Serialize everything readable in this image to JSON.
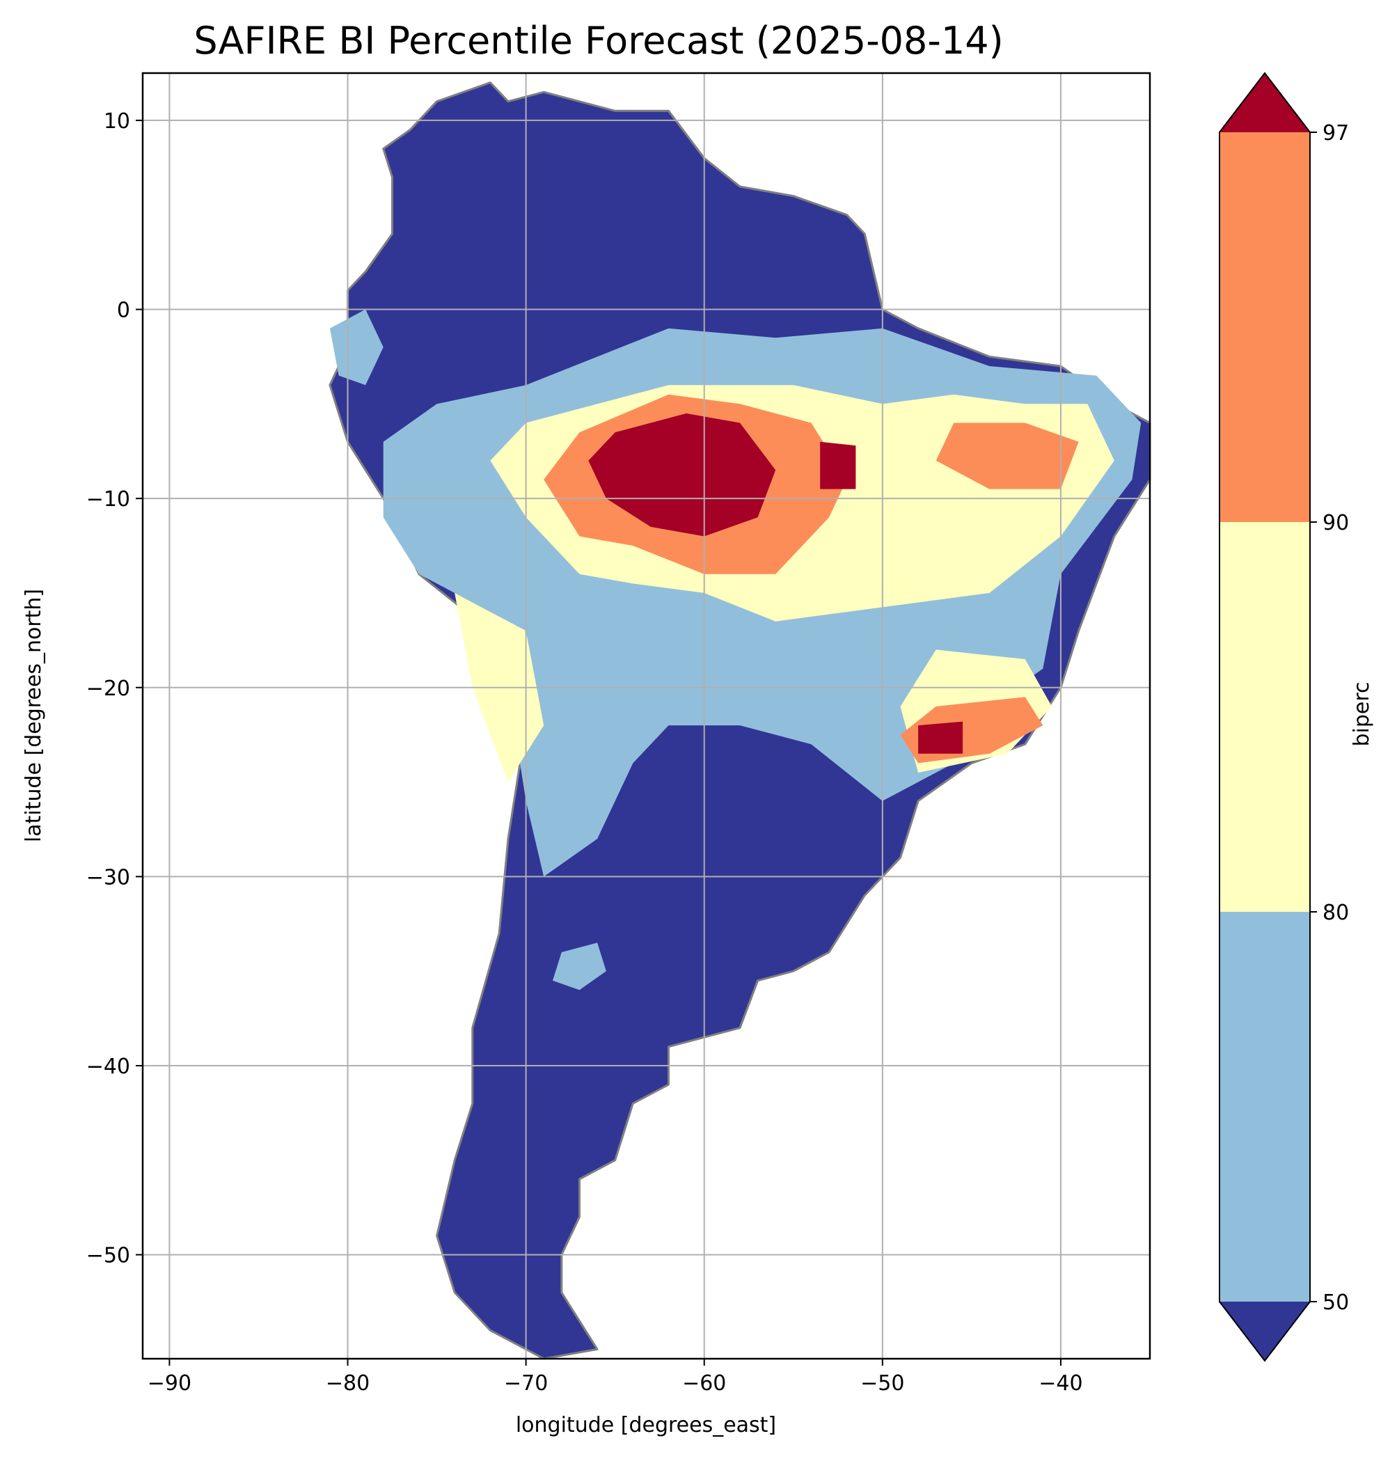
{
  "chart_data": {
    "type": "heatmap",
    "title": "SAFIRE BI Percentile Forecast (2025-08-14)",
    "xlabel": "longitude [degrees_east]",
    "ylabel": "latitude [degrees_north]",
    "xlim": [
      -91.5,
      -35
    ],
    "ylim": [
      -55.5,
      12.5
    ],
    "xticks": [
      {
        "value": -90,
        "label": "−90"
      },
      {
        "value": -80,
        "label": "−80"
      },
      {
        "value": -70,
        "label": "−70"
      },
      {
        "value": -60,
        "label": "−60"
      },
      {
        "value": -50,
        "label": "−50"
      },
      {
        "value": -40,
        "label": "−40"
      }
    ],
    "yticks": [
      {
        "value": 10,
        "label": "10"
      },
      {
        "value": 0,
        "label": "0"
      },
      {
        "value": -10,
        "label": "−10"
      },
      {
        "value": -20,
        "label": "−20"
      },
      {
        "value": -30,
        "label": "−30"
      },
      {
        "value": -40,
        "label": "−40"
      },
      {
        "value": -50,
        "label": "−50"
      }
    ],
    "grid": true,
    "colorbar": {
      "label": "biperc",
      "extend": "both",
      "ticks": [
        {
          "value": 50,
          "label": "50"
        },
        {
          "value": 80,
          "label": "80"
        },
        {
          "value": 90,
          "label": "90"
        },
        {
          "value": 97,
          "label": "97"
        }
      ],
      "bins": [
        {
          "range": [
            null,
            50
          ],
          "color": "#313695"
        },
        {
          "range": [
            50,
            80
          ],
          "color": "#91bfdb"
        },
        {
          "range": [
            80,
            90
          ],
          "color": "#ffffbf"
        },
        {
          "range": [
            90,
            97
          ],
          "color": "#fc8d59"
        },
        {
          "range": [
            97,
            null
          ],
          "color": "#a50026"
        }
      ]
    },
    "land_outline": [
      [
        -78,
        8.5
      ],
      [
        -76.5,
        9.5
      ],
      [
        -75,
        11
      ],
      [
        -72,
        12
      ],
      [
        -71,
        11
      ],
      [
        -69,
        11.5
      ],
      [
        -65,
        10.5
      ],
      [
        -62,
        10.5
      ],
      [
        -60,
        8
      ],
      [
        -58,
        6.5
      ],
      [
        -55,
        6
      ],
      [
        -52,
        5
      ],
      [
        -51,
        4
      ],
      [
        -50,
        0
      ],
      [
        -48,
        -1
      ],
      [
        -44,
        -2.5
      ],
      [
        -40,
        -3
      ],
      [
        -37,
        -5
      ],
      [
        -35,
        -6
      ],
      [
        -35,
        -9
      ],
      [
        -37,
        -12
      ],
      [
        -39,
        -17
      ],
      [
        -40,
        -20
      ],
      [
        -42,
        -23
      ],
      [
        -45,
        -24
      ],
      [
        -48,
        -26
      ],
      [
        -49,
        -29
      ],
      [
        -51,
        -31
      ],
      [
        -53,
        -34
      ],
      [
        -55,
        -35
      ],
      [
        -57,
        -35.5
      ],
      [
        -58,
        -38
      ],
      [
        -62,
        -39
      ],
      [
        -62,
        -41
      ],
      [
        -64,
        -42
      ],
      [
        -65,
        -45
      ],
      [
        -67,
        -46
      ],
      [
        -67,
        -48
      ],
      [
        -68,
        -50
      ],
      [
        -68,
        -52
      ],
      [
        -66,
        -55
      ],
      [
        -69,
        -55.5
      ],
      [
        -72,
        -54
      ],
      [
        -74,
        -52
      ],
      [
        -75,
        -49
      ],
      [
        -74,
        -45
      ],
      [
        -73,
        -42
      ],
      [
        -73,
        -38
      ],
      [
        -71.5,
        -33
      ],
      [
        -71,
        -28
      ],
      [
        -70,
        -22
      ],
      [
        -70,
        -18
      ],
      [
        -72,
        -17
      ],
      [
        -76,
        -14
      ],
      [
        -78,
        -10
      ],
      [
        -80,
        -7
      ],
      [
        -81,
        -4
      ],
      [
        -80,
        -2
      ],
      [
        -80,
        1
      ],
      [
        -79,
        2
      ],
      [
        -77.5,
        4
      ],
      [
        -77.5,
        7
      ]
    ],
    "regions": [
      {
        "category": "50-80",
        "points": [
          [
            -75,
            -5
          ],
          [
            -70,
            -4
          ],
          [
            -62,
            -1
          ],
          [
            -56,
            -1.5
          ],
          [
            -50,
            -1
          ],
          [
            -44,
            -3
          ],
          [
            -38,
            -3.5
          ],
          [
            -35.5,
            -6
          ],
          [
            -36,
            -9
          ],
          [
            -40,
            -14
          ],
          [
            -41,
            -19
          ],
          [
            -44,
            -21
          ],
          [
            -46,
            -24
          ],
          [
            -50,
            -26
          ],
          [
            -54,
            -23
          ],
          [
            -58,
            -22
          ],
          [
            -62,
            -22
          ],
          [
            -64,
            -24
          ],
          [
            -66,
            -28
          ],
          [
            -69,
            -30
          ],
          [
            -70,
            -26
          ],
          [
            -71,
            -20
          ],
          [
            -72,
            -16
          ],
          [
            -76,
            -14
          ],
          [
            -78,
            -11
          ],
          [
            -78,
            -7
          ]
        ]
      },
      {
        "category": "50-80",
        "points": [
          [
            -81,
            -1
          ],
          [
            -79,
            0
          ],
          [
            -78,
            -2
          ],
          [
            -79,
            -4
          ],
          [
            -80.5,
            -3.5
          ]
        ]
      },
      {
        "category": "50-80",
        "points": [
          [
            -68,
            -34
          ],
          [
            -66,
            -33.5
          ],
          [
            -65.5,
            -35
          ],
          [
            -67,
            -36
          ],
          [
            -68.5,
            -35.5
          ]
        ]
      },
      {
        "category": "80-90",
        "points": [
          [
            -70,
            -6
          ],
          [
            -62,
            -4
          ],
          [
            -55,
            -4
          ],
          [
            -50,
            -5
          ],
          [
            -46,
            -4.5
          ],
          [
            -42,
            -5
          ],
          [
            -38.5,
            -5
          ],
          [
            -37,
            -8
          ],
          [
            -40,
            -12
          ],
          [
            -44,
            -15
          ],
          [
            -48,
            -15.5
          ],
          [
            -52,
            -16
          ],
          [
            -56,
            -16.5
          ],
          [
            -60,
            -15
          ],
          [
            -64,
            -14.5
          ],
          [
            -67,
            -14
          ],
          [
            -70,
            -11
          ],
          [
            -72,
            -8
          ]
        ]
      },
      {
        "category": "80-90",
        "points": [
          [
            -74,
            -15
          ],
          [
            -70,
            -17
          ],
          [
            -69,
            -22
          ],
          [
            -71,
            -25
          ],
          [
            -73,
            -20
          ]
        ]
      },
      {
        "category": "80-90",
        "points": [
          [
            -47,
            -18
          ],
          [
            -42,
            -18.5
          ],
          [
            -40.5,
            -21
          ],
          [
            -43,
            -23.5
          ],
          [
            -48,
            -24.5
          ],
          [
            -49,
            -21
          ]
        ]
      },
      {
        "category": "90-97",
        "points": [
          [
            -67,
            -6.5
          ],
          [
            -62,
            -4.5
          ],
          [
            -58,
            -5
          ],
          [
            -54,
            -6
          ],
          [
            -52,
            -9
          ],
          [
            -53,
            -11
          ],
          [
            -56,
            -14
          ],
          [
            -60,
            -14
          ],
          [
            -64,
            -12.5
          ],
          [
            -67,
            -12
          ],
          [
            -69,
            -9
          ]
        ]
      },
      {
        "category": "90-97",
        "points": [
          [
            -46,
            -6
          ],
          [
            -42,
            -6
          ],
          [
            -39,
            -7
          ],
          [
            -40,
            -9.5
          ],
          [
            -44,
            -9.5
          ],
          [
            -47,
            -8
          ]
        ]
      },
      {
        "category": "90-97",
        "points": [
          [
            -47,
            -21
          ],
          [
            -42,
            -20.5
          ],
          [
            -41,
            -22
          ],
          [
            -44,
            -23.5
          ],
          [
            -48,
            -24
          ],
          [
            -49,
            -22.5
          ]
        ]
      },
      {
        "category": ">97",
        "points": [
          [
            -65,
            -6.5
          ],
          [
            -61,
            -5.5
          ],
          [
            -58,
            -6
          ],
          [
            -56,
            -8.5
          ],
          [
            -57,
            -11
          ],
          [
            -60,
            -12
          ],
          [
            -63,
            -11.5
          ],
          [
            -65.5,
            -10
          ],
          [
            -66.5,
            -8
          ]
        ]
      },
      {
        "category": ">97",
        "points": [
          [
            -53.5,
            -7
          ],
          [
            -51.5,
            -7.2
          ],
          [
            -51.5,
            -9.5
          ],
          [
            -53.5,
            -9.5
          ]
        ]
      },
      {
        "category": ">97",
        "points": [
          [
            -48,
            -22
          ],
          [
            -45.5,
            -21.8
          ],
          [
            -45.5,
            -23.5
          ],
          [
            -48,
            -23.5
          ]
        ]
      }
    ]
  }
}
